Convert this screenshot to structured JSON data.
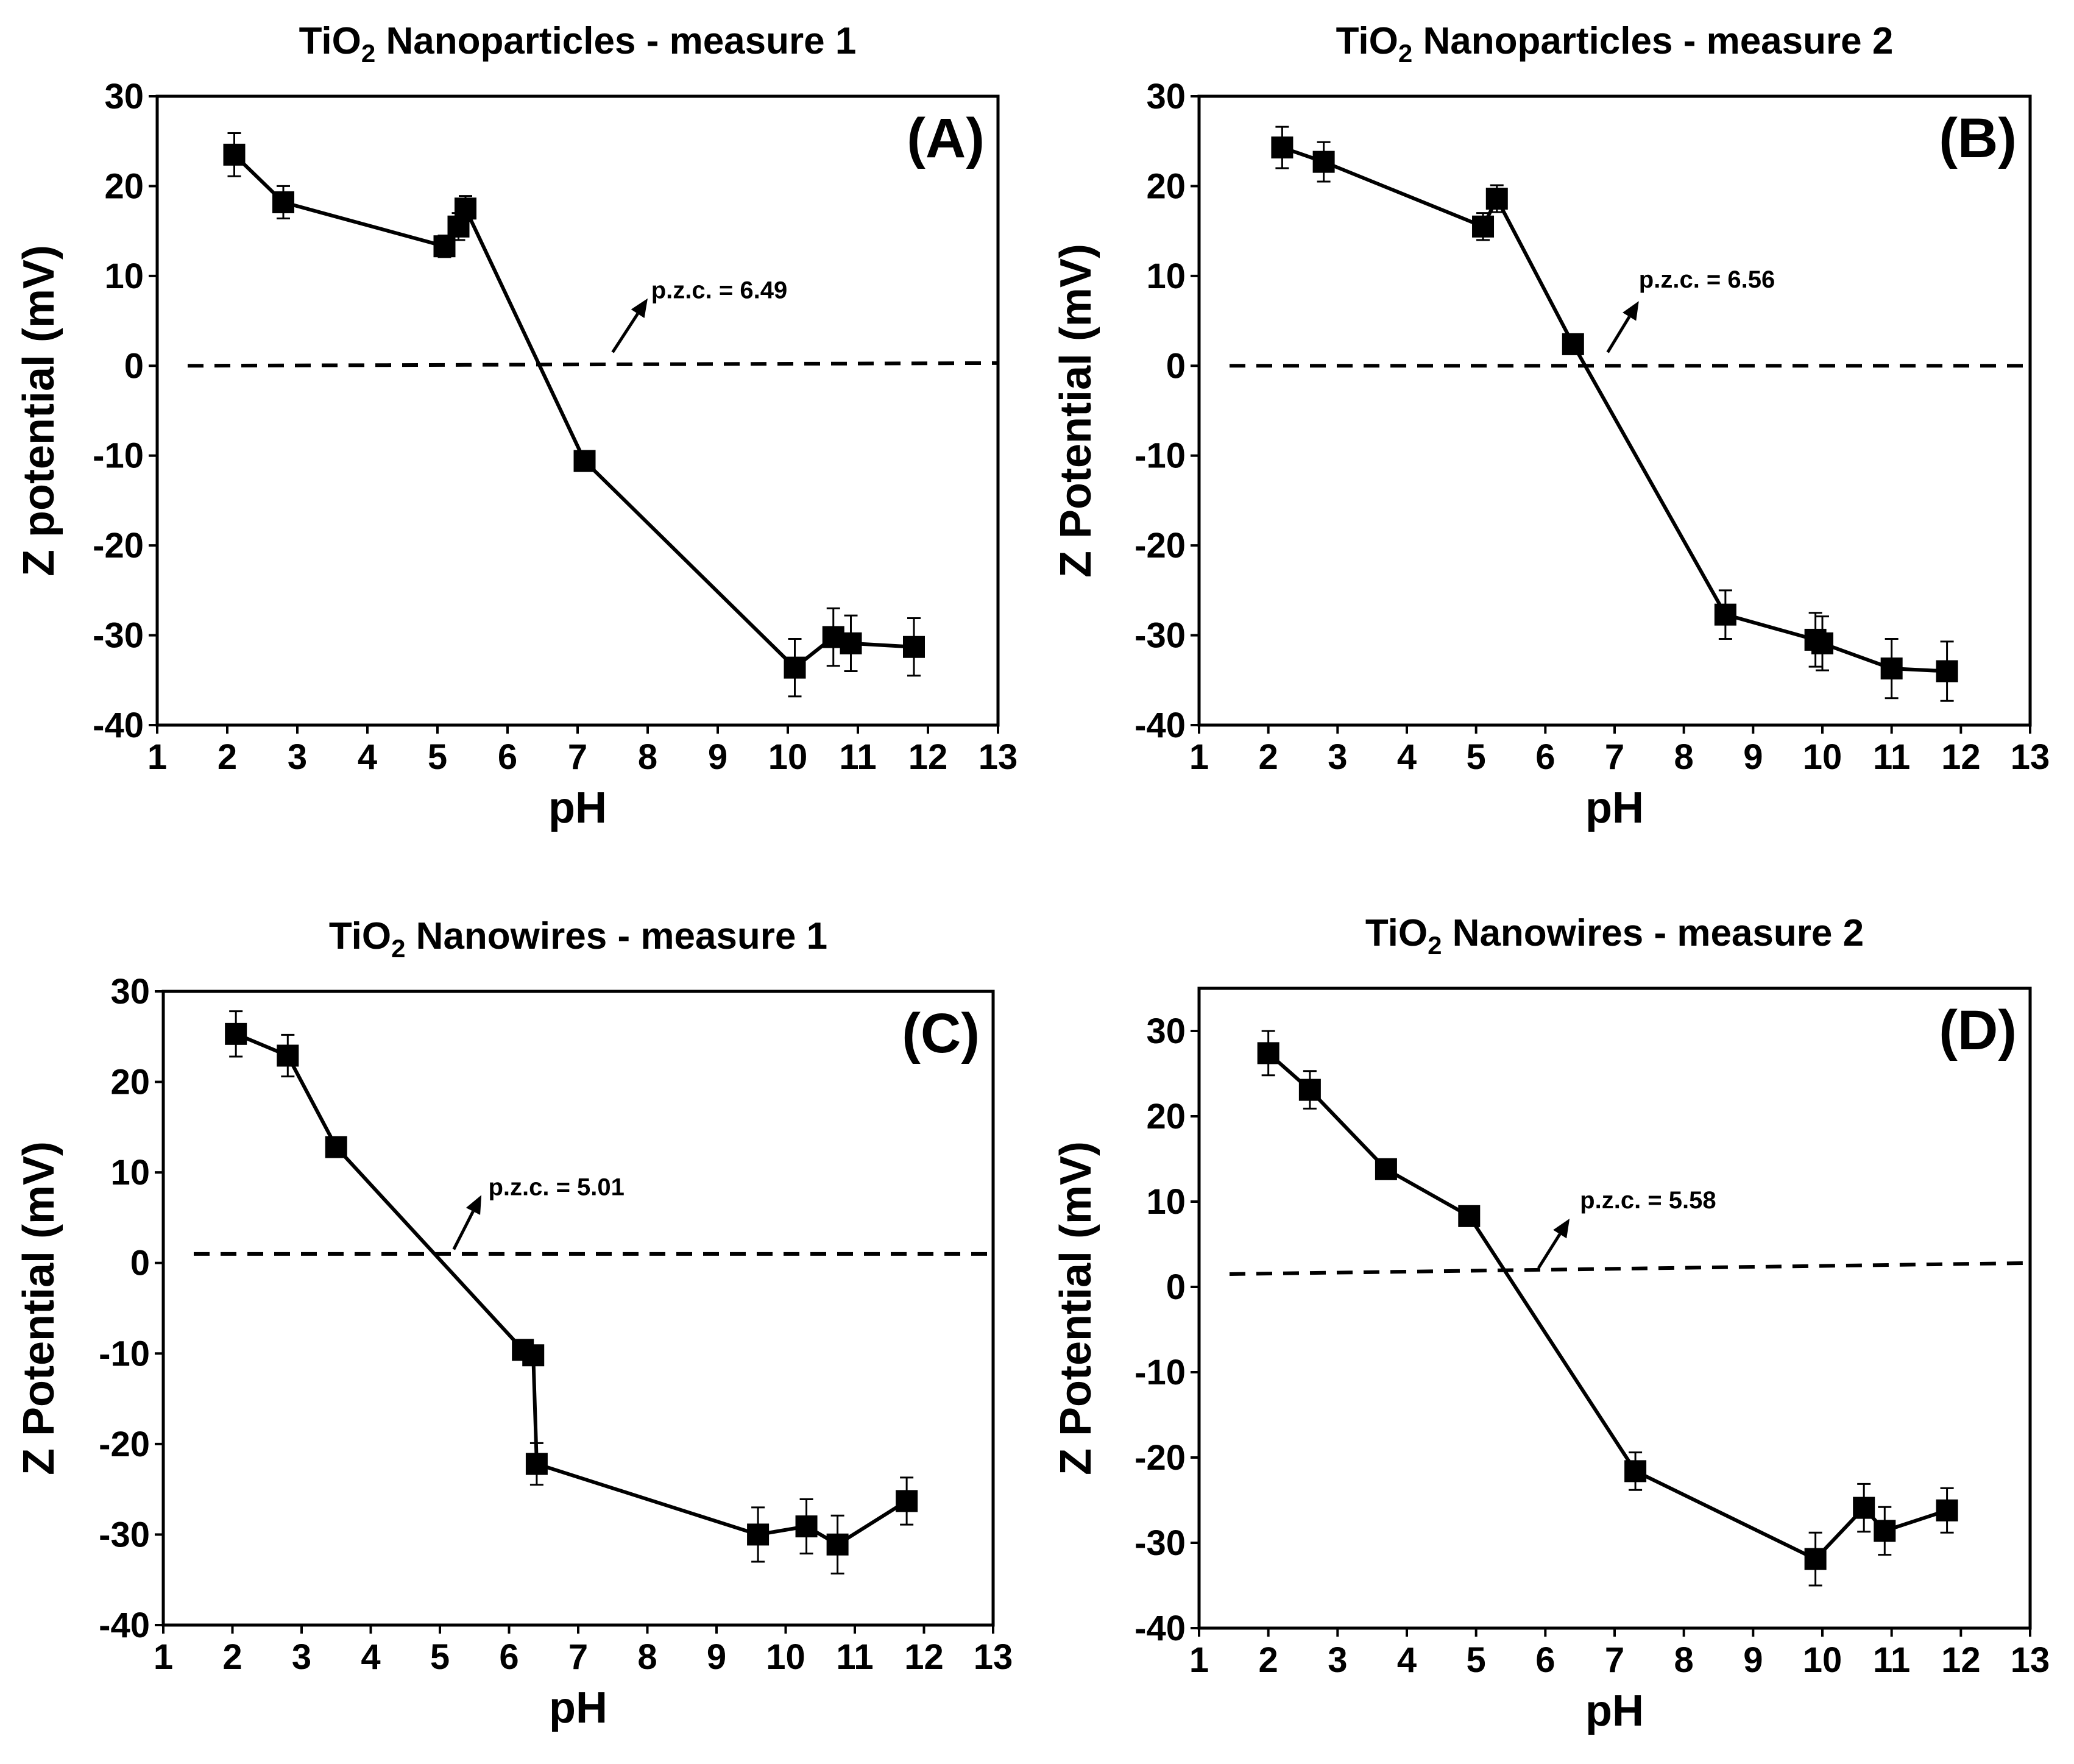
{
  "chart_data": [
    {
      "type": "line",
      "id": "A",
      "title": {
        "prefix": "TiO",
        "sub": "2",
        "suffix": " Nanoparticles - measure 1"
      },
      "panel_label": "(A)",
      "xlabel": "pH",
      "ylabel": "Z potential  (mV)",
      "xlim": [
        1,
        13
      ],
      "ylim": [
        -40,
        30
      ],
      "xticks": [
        1,
        2,
        3,
        4,
        5,
        6,
        7,
        8,
        9,
        10,
        11,
        12,
        13
      ],
      "yticks": [
        30,
        20,
        10,
        0,
        -10,
        -20,
        -30,
        -40
      ],
      "x": [
        2.1,
        2.8,
        5.1,
        5.3,
        5.4,
        7.1,
        10.1,
        10.65,
        10.9,
        11.8
      ],
      "y": [
        23.5,
        18.2,
        13.3,
        15.5,
        17.5,
        -10.6,
        -33.6,
        -30.2,
        -30.9,
        -31.3
      ],
      "err": [
        2.4,
        1.8,
        1.2,
        1.5,
        1.4,
        0.9,
        3.2,
        3.2,
        3.1,
        3.2
      ],
      "zero_line": [
        0,
        0.3
      ],
      "annotation": "p.z.c. = 6.49",
      "pzc_arrow": {
        "from": [
          7.5,
          1.5
        ],
        "to": [
          8.0,
          7.5
        ]
      },
      "label_x": 8.05,
      "label_y": 7.5
    },
    {
      "type": "line",
      "id": "B",
      "title": {
        "prefix": "TiO",
        "sub": "2",
        "suffix": " Nanoparticles - measure 2"
      },
      "panel_label": "(B)",
      "xlabel": "pH",
      "ylabel": "Z Potential  (mV)",
      "xlim": [
        1,
        13
      ],
      "ylim": [
        -40,
        30
      ],
      "xticks": [
        1,
        2,
        3,
        4,
        5,
        6,
        7,
        8,
        9,
        10,
        11,
        12,
        13
      ],
      "yticks": [
        30,
        20,
        10,
        0,
        -10,
        -20,
        -30,
        -40
      ],
      "x": [
        2.2,
        2.8,
        5.1,
        5.3,
        6.4,
        8.6,
        9.9,
        10.0,
        11.0,
        11.8
      ],
      "y": [
        24.3,
        22.7,
        15.5,
        18.6,
        2.4,
        -27.7,
        -30.5,
        -30.9,
        -33.7,
        -34.0
      ],
      "err": [
        2.3,
        2.2,
        1.5,
        1.5,
        0.7,
        2.7,
        3.0,
        3.0,
        3.3,
        3.3
      ],
      "zero_line": [
        0,
        0
      ],
      "annotation": "p.z.c. = 6.56",
      "pzc_arrow": {
        "from": [
          6.9,
          1.5
        ],
        "to": [
          7.35,
          7.2
        ]
      },
      "label_x": 7.35,
      "label_y": 8.7
    },
    {
      "type": "line",
      "id": "C",
      "title": {
        "prefix": "TiO",
        "sub": "2",
        "suffix": " Nanowires - measure 1"
      },
      "panel_label": "(C)",
      "xlabel": "pH",
      "ylabel": "Z Potential  (mV)",
      "xlim": [
        1,
        13
      ],
      "ylim": [
        -40,
        30
      ],
      "xticks": [
        1,
        2,
        3,
        4,
        5,
        6,
        7,
        8,
        9,
        10,
        11,
        12,
        13
      ],
      "yticks": [
        30,
        20,
        10,
        0,
        -10,
        -20,
        -30,
        -40
      ],
      "x": [
        2.05,
        2.8,
        3.5,
        6.2,
        6.35,
        6.4,
        9.6,
        10.3,
        10.75,
        11.75
      ],
      "y": [
        25.3,
        22.9,
        12.8,
        -9.6,
        -10.2,
        -22.2,
        -30.0,
        -29.1,
        -31.1,
        -26.3
      ],
      "err": [
        2.5,
        2.3,
        0.9,
        0.8,
        0.8,
        2.3,
        3.0,
        3.0,
        3.2,
        2.6
      ],
      "zero_line": [
        1.0,
        1.0
      ],
      "annotation": "p.z.c. = 5.01",
      "pzc_arrow": {
        "from": [
          5.2,
          1.5
        ],
        "to": [
          5.6,
          7.5
        ]
      },
      "label_x": 5.7,
      "label_y": 7.5
    },
    {
      "type": "line",
      "id": "D",
      "title": {
        "prefix": "TiO",
        "sub": "2",
        "suffix": " Nanowires - measure 2"
      },
      "panel_label": "(D)",
      "xlabel": "pH",
      "ylabel": "Z Potential  (mV)",
      "xlim": [
        1,
        13
      ],
      "ylim": [
        -40,
        35
      ],
      "xticks": [
        1,
        2,
        3,
        4,
        5,
        6,
        7,
        8,
        9,
        10,
        11,
        12,
        13
      ],
      "yticks": [
        30,
        20,
        10,
        0,
        -10,
        -20,
        -30,
        -40
      ],
      "x": [
        2.0,
        2.6,
        3.7,
        4.9,
        7.3,
        9.9,
        10.6,
        10.9,
        11.8
      ],
      "y": [
        27.4,
        23.1,
        13.8,
        8.3,
        -21.6,
        -31.9,
        -25.9,
        -28.6,
        -26.2
      ],
      "err": [
        2.6,
        2.2,
        0.8,
        0.5,
        2.2,
        3.1,
        2.8,
        2.8,
        2.6
      ],
      "zero_line": [
        1.5,
        2.8
      ],
      "annotation": "p.z.c. = 5.58",
      "pzc_arrow": {
        "from": [
          5.9,
          2.2
        ],
        "to": [
          6.35,
          8.0
        ]
      },
      "label_x": 6.5,
      "label_y": 9.2
    }
  ]
}
